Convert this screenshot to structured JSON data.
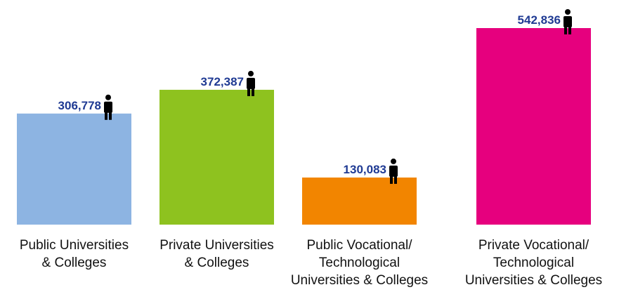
{
  "chart_data": {
    "type": "bar",
    "categories": [
      [
        "Public Universities",
        "& Colleges"
      ],
      [
        "Private Universities",
        "& Colleges"
      ],
      [
        "Public Vocational/",
        "Technological",
        "Universities & Colleges"
      ],
      [
        "Private Vocational/",
        "Technological",
        "Universities & Colleges"
      ]
    ],
    "values": [
      306778,
      372387,
      130083,
      542836
    ],
    "value_labels": [
      "306,778",
      "372,387",
      "130,083",
      "542,836"
    ],
    "colors": [
      "#8db4e2",
      "#8ec21f",
      "#f28500",
      "#e6007e"
    ],
    "value_label_color": "#1f3a93",
    "person_icon": "person-icon",
    "title": "",
    "xlabel": "",
    "ylabel": "",
    "ylim": [
      0,
      542836
    ],
    "grid": false,
    "legend": "none"
  }
}
